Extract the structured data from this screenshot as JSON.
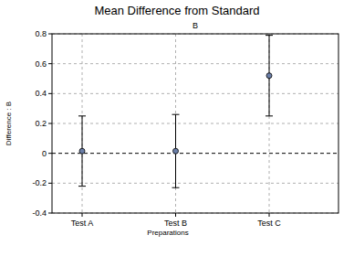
{
  "chart_data": {
    "type": "errorbar",
    "title": "Mean Difference from Standard",
    "subtitle": "B",
    "x_label": "Preparations",
    "y_label": "Difference : B",
    "categories": [
      "Test A",
      "Test B",
      "Test C"
    ],
    "values": [
      0.015,
      0.015,
      0.52
    ],
    "errors": [
      0.235,
      0.245,
      0.27
    ],
    "color": "#6b7fa8",
    "marker": "circle",
    "ylim": [
      -0.4,
      0.8
    ],
    "yticks": [
      -0.4,
      -0.2,
      0,
      0.2,
      0.4,
      0.6,
      0.8
    ],
    "grid": true
  }
}
